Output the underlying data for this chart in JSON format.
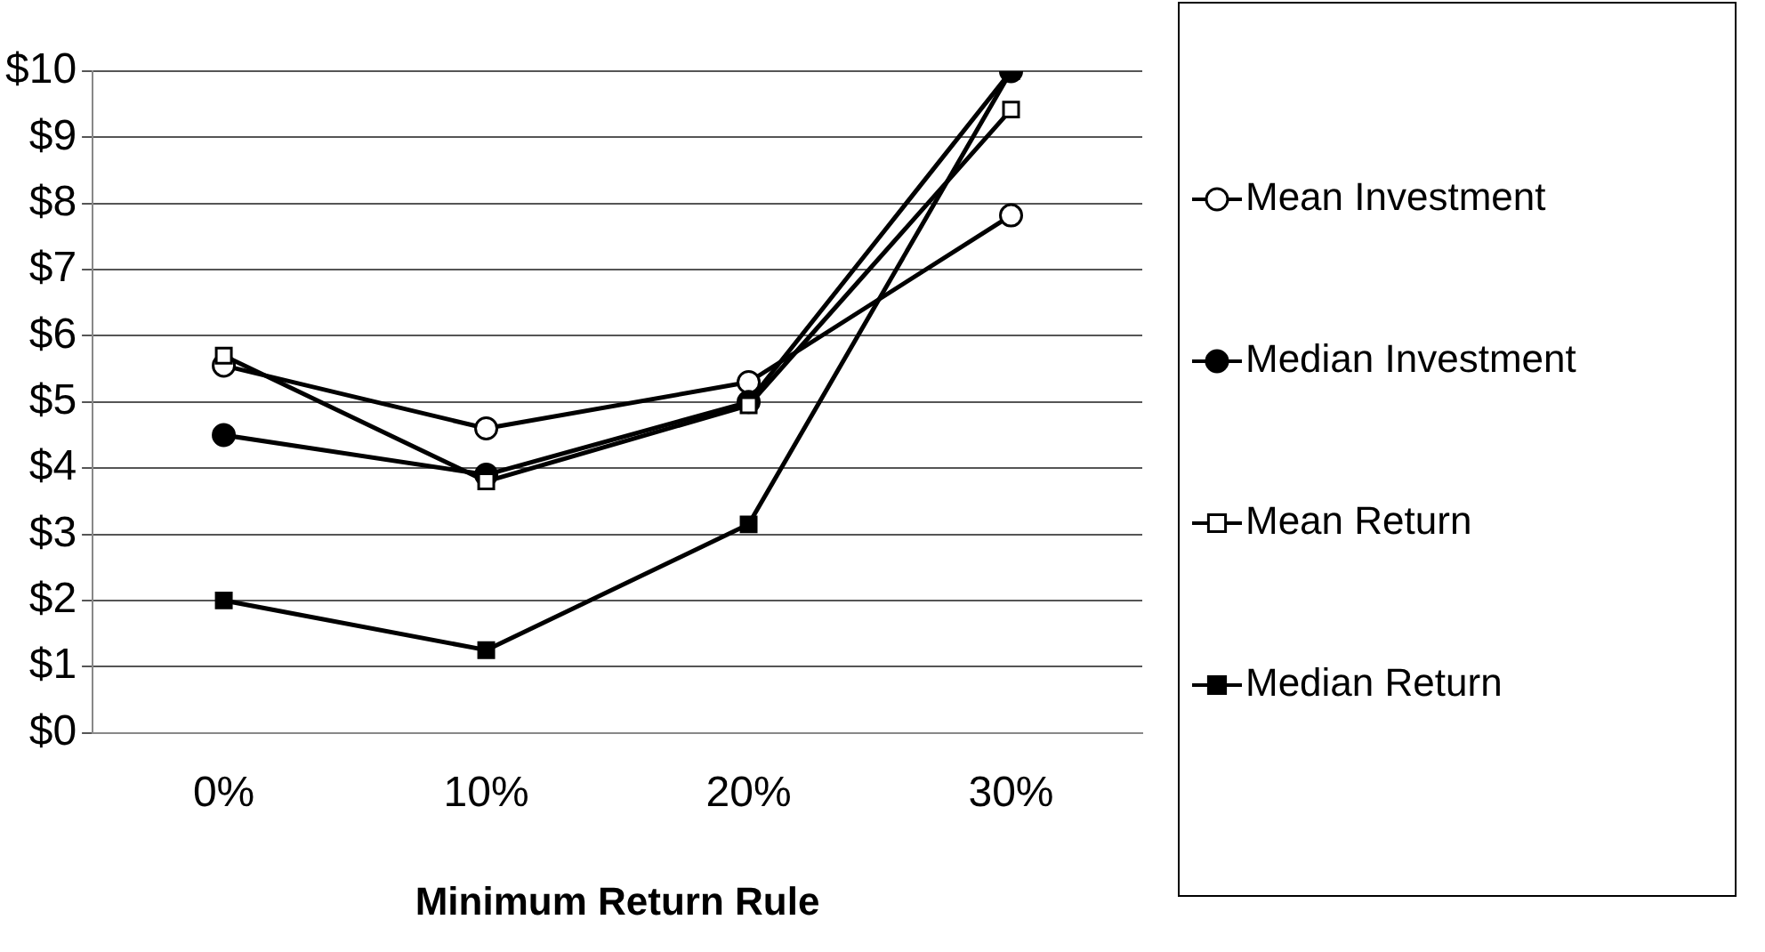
{
  "chart_data": {
    "type": "line",
    "xlabel": "Minimum Return Rule",
    "categories": [
      "0%",
      "10%",
      "20%",
      "30%"
    ],
    "series": [
      {
        "name": "Mean Investment",
        "color": "#000000",
        "marker": "circle",
        "values": [
          5.55,
          4.6,
          5.3,
          7.82
        ]
      },
      {
        "name": "Median Investment",
        "color": "#000000",
        "marker": "circle",
        "values": [
          4.5,
          3.9,
          5.0,
          10.0
        ]
      },
      {
        "name": "Mean Return",
        "color": "#000000",
        "marker": "square",
        "values": [
          5.7,
          3.8,
          4.95,
          9.42
        ]
      },
      {
        "name": "Median Return",
        "color": "#000000",
        "marker": "square",
        "values": [
          2.0,
          1.25,
          3.15,
          10.0
        ]
      }
    ],
    "ylim": [
      0,
      10
    ],
    "yticks": [
      {
        "value": 0,
        "label": "$0"
      },
      {
        "value": 1,
        "label": "$1"
      },
      {
        "value": 2,
        "label": "$2"
      },
      {
        "value": 3,
        "label": "$3"
      },
      {
        "value": 4,
        "label": "$4"
      },
      {
        "value": 5,
        "label": "$5"
      },
      {
        "value": 6,
        "label": "$6"
      },
      {
        "value": 7,
        "label": "$7"
      },
      {
        "value": 8,
        "label": "$8"
      },
      {
        "value": 9,
        "label": "$9"
      },
      {
        "value": 10,
        "label": "$10"
      }
    ],
    "grid": "y",
    "legend": "right"
  }
}
